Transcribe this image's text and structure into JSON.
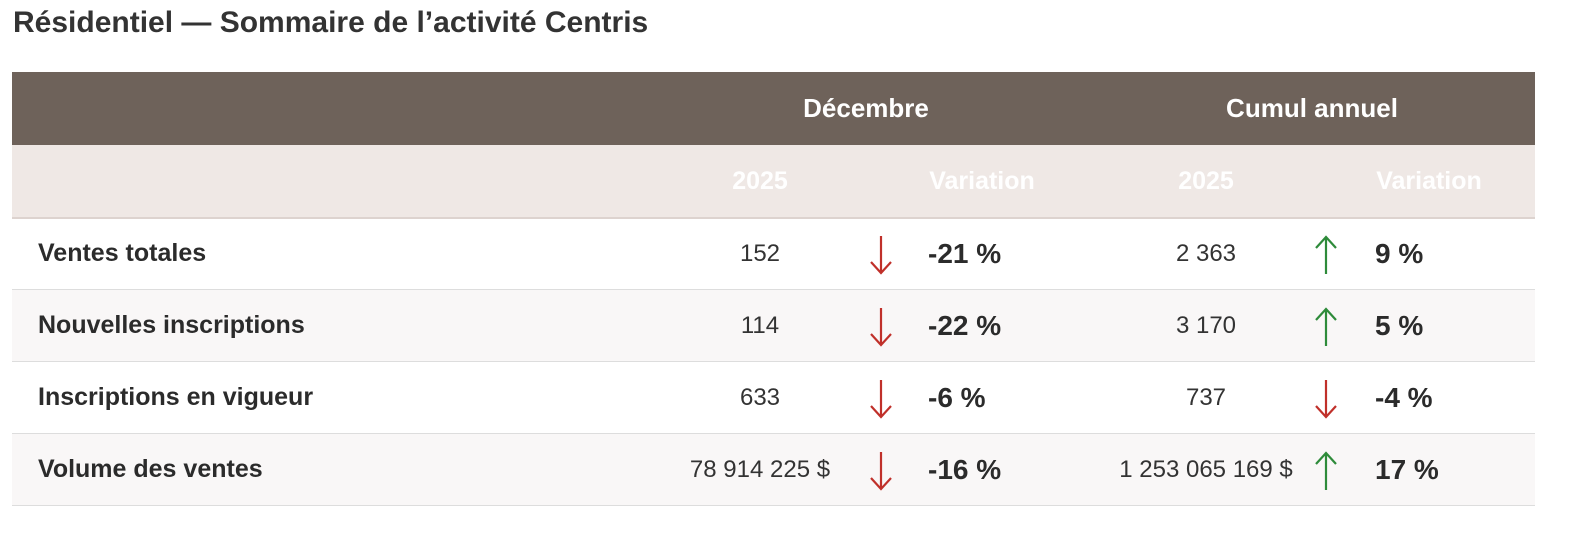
{
  "title": "Résidentiel — Sommaire de l’activité Centris",
  "table": {
    "groups": [
      "Décembre",
      "Cumul annuel"
    ],
    "subheaders": [
      "2025",
      "Variation",
      "2025",
      "Variation"
    ],
    "rows": [
      [
        "Ventes totales",
        "152",
        "-21 %",
        "2 363",
        "9 %"
      ],
      [
        "Nouvelles inscriptions",
        "114",
        "-22 %",
        "3 170",
        "5 %"
      ],
      [
        "Inscriptions en vigueur",
        "633",
        "-6 %",
        "737",
        "-4 %"
      ],
      [
        "Volume des ventes",
        "78 914 225 $",
        "-16 %",
        "1 253 065 169 $",
        "17 %"
      ]
    ]
  }
}
